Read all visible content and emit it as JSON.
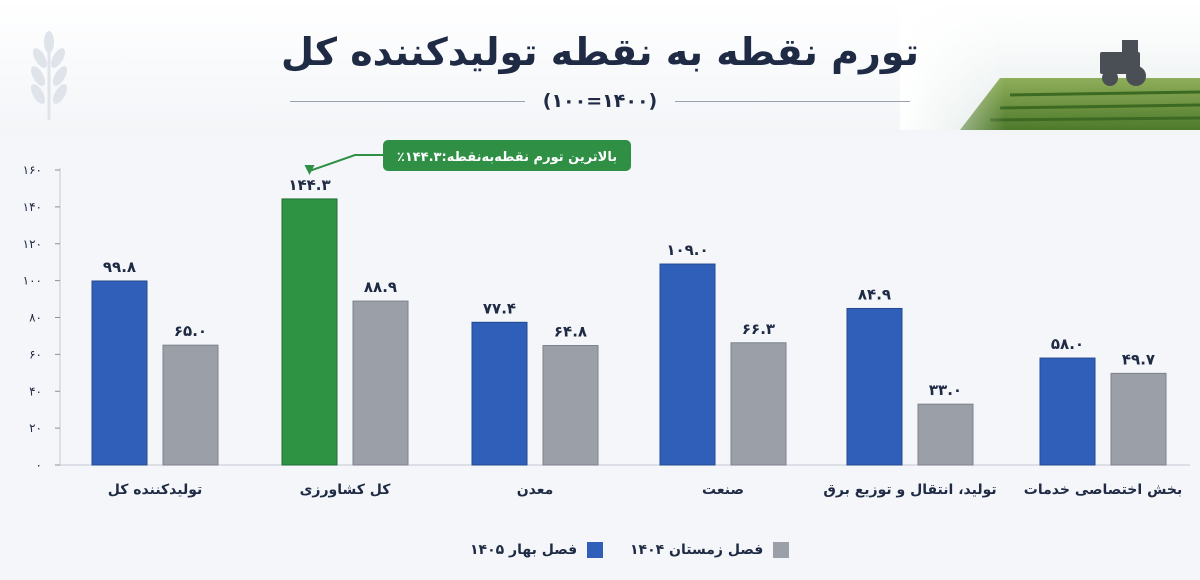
{
  "header": {
    "title": "تورم نقطه به نقطه تولیدکننده کل",
    "subtitle": "(۱۴۰۰=۱۰۰)"
  },
  "callout": {
    "text": "بالاترین تورم نقطه‌به‌نقطه:۱۴۴.۳٪"
  },
  "colors": {
    "spring_1405": "#2f5fb8",
    "winter_1404": "#9a9fa8",
    "highlight": "#2e9444",
    "callout_bg": "#2e8f45",
    "text": "#1f2a44"
  },
  "chart_data": {
    "type": "bar",
    "categories": [
      "تولیدکننده کل",
      "کل کشاورزی",
      "معدن",
      "صنعت",
      "تولید، انتقال و توزیع برق",
      "بخش اختصاصی خدمات"
    ],
    "series": [
      {
        "name": "فصل بهار ۱۴۰۵",
        "values": [
          99.8,
          144.3,
          77.4,
          109.0,
          84.9,
          58.0
        ],
        "labels": [
          "۹۹.۸",
          "۱۴۴.۳",
          "۷۷.۴",
          "۱۰۹.۰",
          "۸۴.۹",
          "۵۸.۰"
        ]
      },
      {
        "name": "فصل زمستان ۱۴۰۴",
        "values": [
          65.0,
          88.9,
          64.8,
          66.3,
          33.0,
          49.7
        ],
        "labels": [
          "۶۵.۰",
          "۸۸.۹",
          "۶۴.۸",
          "۶۶.۳",
          "۳۳.۰",
          "۴۹.۷"
        ]
      }
    ],
    "highlight_index": 1,
    "ylim": [
      0,
      160
    ],
    "yticks": [
      0,
      20,
      40,
      60,
      80,
      100,
      120,
      140,
      160
    ],
    "ytick_labels": [
      "۰",
      "۲۰",
      "۴۰",
      "۶۰",
      "۸۰",
      "۱۰۰",
      "۱۲۰",
      "۱۴۰",
      "۱۶۰"
    ],
    "legend_position": "bottom"
  }
}
